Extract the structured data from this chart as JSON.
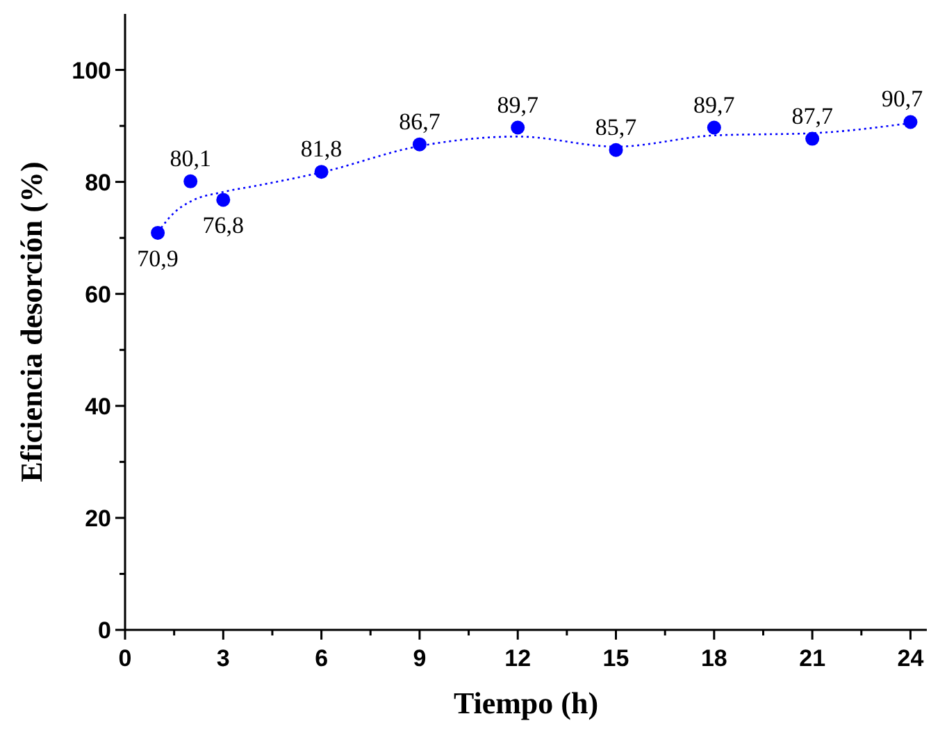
{
  "chart_data": {
    "type": "scatter",
    "xlabel": "Tiempo (h)",
    "ylabel": "Eficiencia desorción (%)",
    "xlim": [
      0,
      24.5
    ],
    "ylim": [
      0,
      110
    ],
    "xticks": [
      0,
      {
        "value": 1.5,
        "label": null
      },
      3,
      {
        "value": 4.5,
        "label": null
      },
      6,
      {
        "value": 7.5,
        "label": null
      },
      9,
      {
        "value": 10.5,
        "label": null
      },
      12,
      {
        "value": 13.5,
        "label": null
      },
      15,
      {
        "value": 16.5,
        "label": null
      },
      18,
      {
        "value": 19.5,
        "label": null
      },
      21,
      {
        "value": 22.5,
        "label": null
      },
      24
    ],
    "yticks": [
      0,
      {
        "value": 10,
        "label": null
      },
      20,
      {
        "value": 30,
        "label": null
      },
      40,
      {
        "value": 50,
        "label": null
      },
      60,
      {
        "value": 70,
        "label": null
      },
      80,
      {
        "value": 90,
        "label": null
      },
      100
    ],
    "grid": false,
    "marker": "circle",
    "series": [
      {
        "type": "line",
        "color": "#0000ff",
        "line_style": "dotted",
        "marker": "none",
        "x": [
          1,
          1.5,
          2,
          3,
          4,
          6,
          9,
          12,
          15,
          18,
          21,
          24
        ],
        "values": [
          71,
          74.5,
          76.5,
          78.2,
          79.3,
          81.7,
          86.4,
          88.1,
          86.3,
          88.3,
          88.7,
          90.5
        ]
      },
      {
        "color": "#0000ff",
        "x": [
          1,
          2,
          3,
          6,
          9,
          12,
          15,
          18,
          21,
          24
        ],
        "values": [
          70.9,
          80.1,
          76.8,
          81.8,
          86.7,
          89.7,
          85.7,
          89.7,
          87.7,
          90.7
        ],
        "value_labels": [
          "70,9",
          "80,1",
          "76,8",
          "81,8",
          "86,7",
          "89,7",
          "85,7",
          "89,7",
          "87,7",
          "90,7"
        ]
      }
    ]
  }
}
